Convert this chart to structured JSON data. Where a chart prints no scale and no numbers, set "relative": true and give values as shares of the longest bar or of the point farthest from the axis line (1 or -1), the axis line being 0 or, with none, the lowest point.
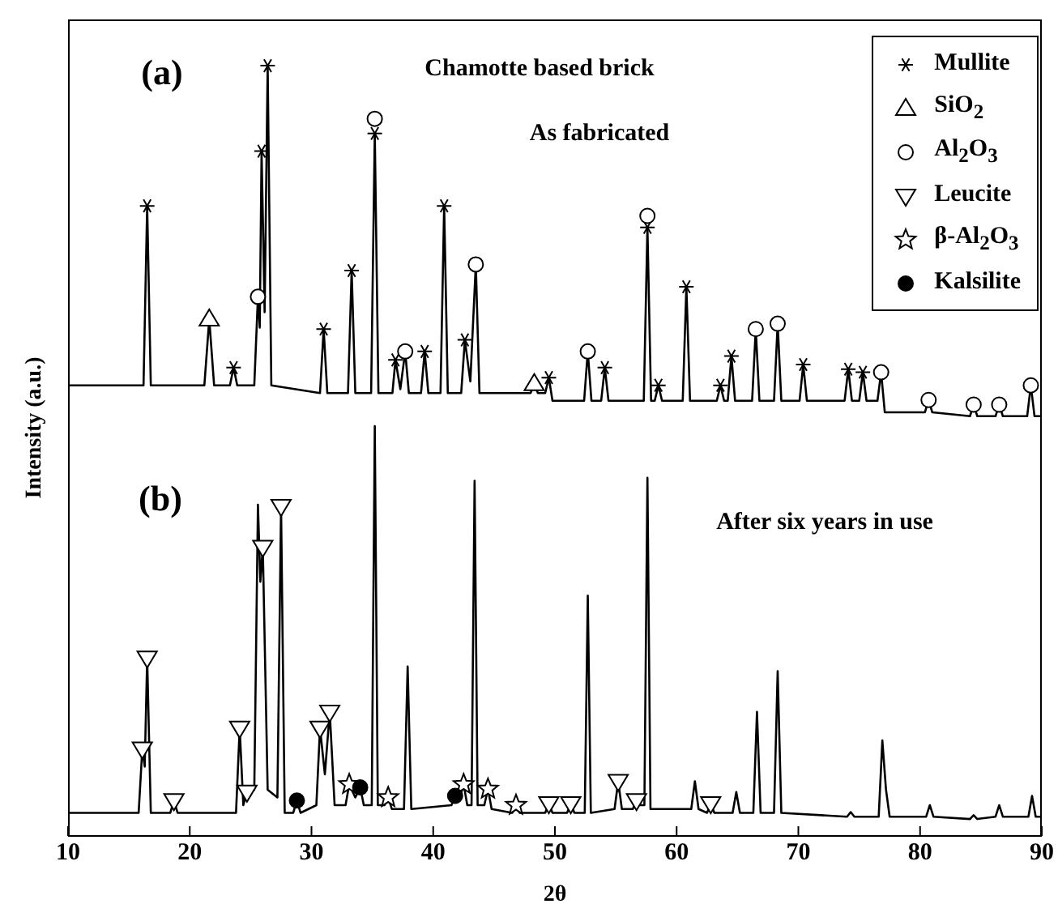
{
  "chart_data": {
    "type": "line",
    "relative": true,
    "xlabel": "2θ",
    "ylabel": "Intensity (a.u.)",
    "xlim": [
      10,
      90
    ],
    "xticks": [
      10,
      20,
      30,
      40,
      50,
      60,
      70,
      80,
      90
    ],
    "legend": "top right",
    "annotations": [
      "(a)",
      "Chamotte based brick",
      "As fabricated",
      "(b)",
      "After six years in use"
    ],
    "series": [
      {
        "color": "#000000",
        "marker": "none",
        "x": [
          10,
          16.2,
          16.5,
          16.8,
          21.2,
          21.6,
          22.0,
          23.3,
          23.6,
          23.9,
          25.3,
          25.6,
          25.75,
          25.9,
          26.15,
          26.4,
          26.7,
          30.7,
          31.0,
          31.3,
          33.0,
          33.3,
          33.6,
          34.9,
          35.2,
          35.5,
          36.65,
          36.9,
          37.3,
          37.7,
          38.0,
          39.0,
          39.3,
          39.6,
          40.6,
          40.9,
          41.2,
          42.3,
          42.6,
          43.05,
          43.5,
          43.8,
          48.0,
          48.3,
          48.6,
          49.2,
          49.5,
          49.8,
          52.4,
          52.7,
          53.0,
          53.8,
          54.1,
          54.4,
          57.3,
          57.6,
          57.9,
          58.2,
          58.5,
          58.8,
          60.5,
          60.8,
          61.1,
          63.3,
          63.6,
          63.9,
          64.2,
          64.5,
          64.8,
          66.2,
          66.5,
          66.8,
          68.0,
          68.3,
          68.6,
          70.1,
          70.4,
          70.7,
          73.8,
          74.1,
          74.4,
          75.0,
          75.3,
          75.6,
          76.5,
          76.8,
          77.1,
          80.4,
          80.7,
          81.0,
          84.1,
          84.4,
          84.7,
          86.2,
          86.5,
          86.8,
          88.8,
          89.1,
          89.4,
          90
        ],
        "values": [
          0.585,
          0.585,
          0.818,
          0.585,
          0.585,
          0.671,
          0.585,
          0.585,
          0.608,
          0.585,
          0.585,
          0.7,
          0.66,
          0.889,
          0.68,
          1,
          0.585,
          0.575,
          0.658,
          0.575,
          0.575,
          0.734,
          0.575,
          0.575,
          0.912,
          0.575,
          0.575,
          0.618,
          0.58,
          0.629,
          0.575,
          0.575,
          0.629,
          0.575,
          0.575,
          0.818,
          0.575,
          0.575,
          0.644,
          0.59,
          0.742,
          0.575,
          0.575,
          0.587,
          0.575,
          0.575,
          0.595,
          0.565,
          0.565,
          0.629,
          0.565,
          0.565,
          0.608,
          0.565,
          0.565,
          0.79,
          0.565,
          0.565,
          0.585,
          0.565,
          0.565,
          0.713,
          0.565,
          0.565,
          0.585,
          0.565,
          0.565,
          0.623,
          0.565,
          0.565,
          0.658,
          0.565,
          0.565,
          0.665,
          0.565,
          0.565,
          0.612,
          0.565,
          0.565,
          0.606,
          0.565,
          0.565,
          0.602,
          0.565,
          0.565,
          0.602,
          0.55,
          0.55,
          0.566,
          0.55,
          0.545,
          0.56,
          0.545,
          0.545,
          0.56,
          0.545,
          0.545,
          0.585,
          0.545,
          0.545
        ]
      },
      {
        "color": "#000000",
        "marker": "none",
        "x": [
          10,
          15.8,
          16.1,
          16.3,
          16.5,
          16.8,
          18.4,
          18.7,
          19.0,
          23.8,
          24.1,
          24.4,
          24.7,
          25.3,
          25.6,
          25.8,
          26.0,
          26.4,
          27.2,
          27.5,
          27.8,
          28.5,
          28.8,
          29.1,
          30.4,
          30.7,
          31.1,
          31.5,
          31.9,
          32.8,
          33.1,
          33.6,
          34.0,
          34.3,
          34.95,
          35.2,
          35.45,
          36.0,
          36.3,
          36.6,
          37.6,
          37.9,
          38.2,
          41.5,
          41.8,
          42.1,
          42.5,
          42.8,
          43.15,
          43.4,
          43.65,
          44.2,
          44.5,
          44.8,
          46.5,
          46.8,
          47.1,
          49.2,
          49.5,
          49.8,
          51.0,
          51.3,
          51.6,
          52.45,
          52.7,
          52.95,
          54.9,
          55.2,
          55.5,
          56.4,
          56.7,
          57.0,
          57.35,
          57.6,
          57.85,
          61.2,
          61.5,
          61.8,
          62.5,
          62.8,
          63.1,
          64.6,
          64.9,
          65.2,
          66.3,
          66.6,
          66.9,
          68.0,
          68.3,
          68.6,
          74.0,
          74.3,
          74.6,
          76.6,
          76.9,
          77.2,
          77.5,
          80.5,
          80.8,
          81.1,
          84.1,
          84.4,
          84.7,
          86.2,
          86.5,
          86.8,
          88.9,
          89.2,
          89.5,
          90
        ],
        "values": [
          0.03,
          0.03,
          0.113,
          0.09,
          0.231,
          0.03,
          0.03,
          0.046,
          0.03,
          0.03,
          0.14,
          0.04,
          0.057,
          0.06,
          0.43,
          0.33,
          0.375,
          0.06,
          0.05,
          0.428,
          0.03,
          0.03,
          0.046,
          0.03,
          0.04,
          0.14,
          0.08,
          0.161,
          0.04,
          0.04,
          0.067,
          0.05,
          0.063,
          0.04,
          0.04,
          0.532,
          0.04,
          0.04,
          0.05,
          0.035,
          0.035,
          0.22,
          0.035,
          0.04,
          0.052,
          0.045,
          0.067,
          0.04,
          0.04,
          0.461,
          0.04,
          0.04,
          0.061,
          0.035,
          0.03,
          0.04,
          0.03,
          0.03,
          0.042,
          0.03,
          0.03,
          0.042,
          0.03,
          0.03,
          0.312,
          0.03,
          0.035,
          0.071,
          0.035,
          0.035,
          0.046,
          0.04,
          0.04,
          0.465,
          0.035,
          0.035,
          0.071,
          0.035,
          0.03,
          0.042,
          0.03,
          0.03,
          0.057,
          0.03,
          0.03,
          0.161,
          0.03,
          0.03,
          0.214,
          0.03,
          0.025,
          0.031,
          0.025,
          0.025,
          0.124,
          0.06,
          0.025,
          0.025,
          0.04,
          0.025,
          0.022,
          0.027,
          0.022,
          0.025,
          0.04,
          0.025,
          0.025,
          0.052,
          0.025,
          0.025
        ]
      },
      {
        "type": "scatter",
        "name": "Mullite",
        "color": "#000000",
        "marker": "cross",
        "x": [
          16.5,
          23.6,
          25.9,
          26.4,
          31.0,
          33.3,
          35.2,
          36.9,
          39.3,
          40.9,
          42.6,
          49.5,
          54.1,
          57.6,
          58.5,
          60.8,
          63.6,
          64.5,
          70.4,
          74.1,
          75.3
        ],
        "values": [
          0.818,
          0.608,
          0.889,
          1,
          0.658,
          0.734,
          0.912,
          0.618,
          0.629,
          0.818,
          0.644,
          0.595,
          0.608,
          0.79,
          0.585,
          0.713,
          0.585,
          0.623,
          0.612,
          0.606,
          0.602
        ]
      },
      {
        "type": "scatter",
        "name": "SiO$_{2}$",
        "color": "#000000",
        "marker": "triangle",
        "x": [
          21.6,
          48.3
        ],
        "values": [
          0.671,
          0.587
        ]
      },
      {
        "type": "scatter",
        "name": "Al$_{2}$O$_{3}$",
        "color": "#000000",
        "marker": "circle",
        "x": [
          25.6,
          35.2,
          37.7,
          43.5,
          52.7,
          57.6,
          66.5,
          68.3,
          76.8,
          80.7,
          84.4,
          86.5,
          89.1
        ],
        "values": [
          0.7,
          0.931,
          0.629,
          0.742,
          0.629,
          0.805,
          0.658,
          0.665,
          0.602,
          0.566,
          0.56,
          0.56,
          0.585
        ]
      },
      {
        "type": "scatter",
        "name": "Leucite",
        "color": "#000000",
        "marker": "triangle-down",
        "x": [
          16.1,
          16.5,
          18.7,
          24.1,
          24.7,
          26.0,
          27.5,
          30.7,
          31.5,
          49.5,
          51.3,
          55.2,
          56.7,
          62.8
        ],
        "values": [
          0.113,
          0.231,
          0.046,
          0.14,
          0.057,
          0.375,
          0.428,
          0.14,
          0.161,
          0.042,
          0.042,
          0.071,
          0.046,
          0.042
        ]
      },
      {
        "type": "scatter",
        "name": "β-Al$_{2}$O$_{3}$",
        "color": "#000000",
        "marker": "star",
        "x": [
          33.1,
          36.3,
          42.5,
          44.5,
          46.8
        ],
        "values": [
          0.067,
          0.05,
          0.067,
          0.061,
          0.04
        ]
      },
      {
        "type": "scatter",
        "name": "Kalsilite",
        "color": "#000000",
        "marker": "filled-circle",
        "x": [
          28.8,
          34.0,
          41.8
        ],
        "values": [
          0.046,
          0.063,
          0.052
        ]
      }
    ]
  }
}
